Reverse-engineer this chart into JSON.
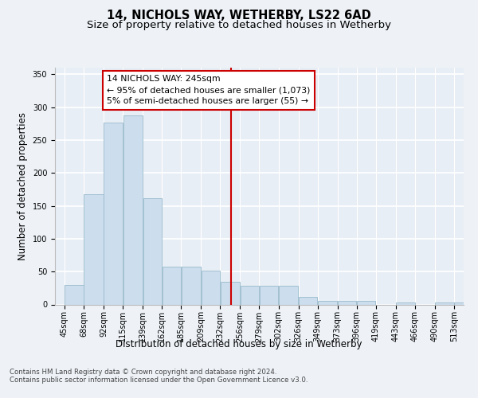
{
  "title": "14, NICHOLS WAY, WETHERBY, LS22 6AD",
  "subtitle": "Size of property relative to detached houses in Wetherby",
  "xlabel": "Distribution of detached houses by size in Wetherby",
  "ylabel": "Number of detached properties",
  "bar_color": "#ccdded",
  "bar_edge_color": "#99bbcc",
  "background_color": "#e8eef5",
  "fig_background_color": "#eef2f7",
  "grid_color": "#ffffff",
  "vline_x": 245,
  "vline_color": "#cc0000",
  "annotation_text": "14 NICHOLS WAY: 245sqm\n← 95% of detached houses are smaller (1,073)\n5% of semi-detached houses are larger (55) →",
  "annotation_box_facecolor": "#ffffff",
  "annotation_box_edgecolor": "#cc0000",
  "bin_edges": [
    45,
    68,
    92,
    115,
    139,
    162,
    185,
    209,
    232,
    256,
    279,
    302,
    326,
    349,
    373,
    396,
    419,
    443,
    466,
    490,
    513
  ],
  "bar_heights": [
    30,
    167,
    277,
    287,
    162,
    57,
    57,
    52,
    35,
    28,
    28,
    28,
    11,
    6,
    5,
    5,
    0,
    3,
    0,
    3,
    3
  ],
  "ylim": [
    0,
    360
  ],
  "yticks": [
    0,
    50,
    100,
    150,
    200,
    250,
    300,
    350
  ],
  "footer_text": "Contains HM Land Registry data © Crown copyright and database right 2024.\nContains public sector information licensed under the Open Government Licence v3.0.",
  "title_fontsize": 10.5,
  "subtitle_fontsize": 9.5,
  "tick_fontsize": 7,
  "ylabel_fontsize": 8.5,
  "xlabel_fontsize": 8.5,
  "footer_fontsize": 6.2,
  "annotation_fontsize": 7.8
}
